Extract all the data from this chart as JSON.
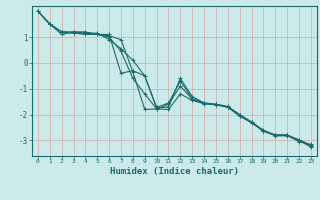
{
  "xlabel": "Humidex (Indice chaleur)",
  "bg_color": "#cceaea",
  "line_color": "#1a6b6b",
  "grid_color": "#d4aaaa",
  "xlim": [
    -0.5,
    23.5
  ],
  "ylim": [
    -3.6,
    2.2
  ],
  "xticks": [
    0,
    1,
    2,
    3,
    4,
    5,
    6,
    7,
    8,
    9,
    10,
    11,
    12,
    13,
    14,
    15,
    16,
    17,
    18,
    19,
    20,
    21,
    22,
    23
  ],
  "yticks": [
    -3,
    -2,
    -1,
    0,
    1
  ],
  "series": [
    [
      2.0,
      1.5,
      1.1,
      1.2,
      1.2,
      1.1,
      1.1,
      -0.4,
      -0.3,
      -0.5,
      -1.75,
      -1.7,
      -0.6,
      -1.3,
      -1.55,
      -1.6,
      -1.7,
      -2.0,
      -2.3,
      -2.65,
      -2.8,
      -2.8,
      -3.05,
      -3.15
    ],
    [
      2.0,
      1.5,
      1.2,
      1.15,
      1.15,
      1.1,
      1.05,
      0.9,
      -0.35,
      -1.8,
      -1.78,
      -1.8,
      -1.2,
      -1.45,
      -1.58,
      -1.62,
      -1.72,
      -2.05,
      -2.32,
      -2.62,
      -2.82,
      -2.82,
      -2.98,
      -3.22
    ],
    [
      2.0,
      1.5,
      1.2,
      1.15,
      1.1,
      1.1,
      1.0,
      0.45,
      -0.6,
      -1.2,
      -1.78,
      -1.6,
      -0.9,
      -1.4,
      -1.57,
      -1.62,
      -1.7,
      -2.05,
      -2.3,
      -2.6,
      -2.8,
      -2.8,
      -2.97,
      -3.18
    ],
    [
      2.0,
      1.5,
      1.2,
      1.2,
      1.15,
      1.15,
      0.9,
      0.55,
      0.1,
      -0.5,
      -1.72,
      -1.55,
      -0.7,
      -1.38,
      -1.55,
      -1.6,
      -1.68,
      -2.0,
      -2.28,
      -2.62,
      -2.78,
      -2.78,
      -3.0,
      -3.25
    ]
  ]
}
